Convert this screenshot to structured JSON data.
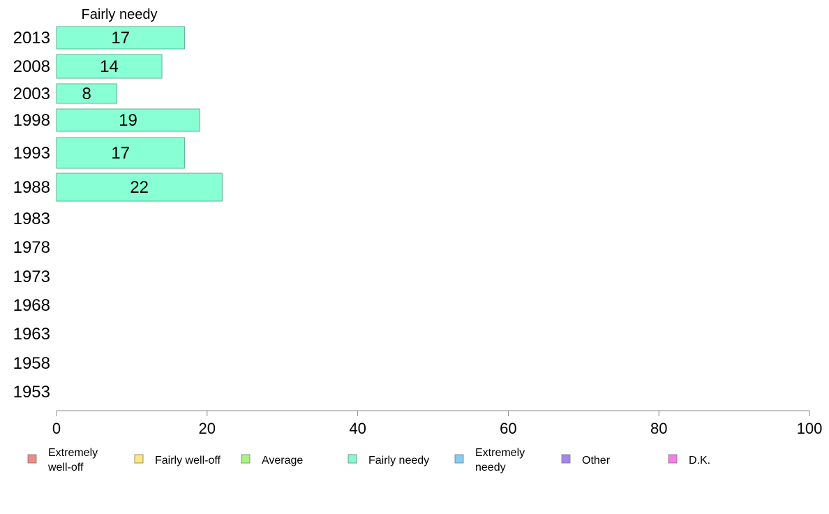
{
  "chart_data": {
    "type": "bar",
    "orientation": "horizontal",
    "title": "Fairly needy",
    "categories": [
      "2013",
      "2008",
      "2003",
      "1998",
      "1993",
      "1988",
      "1983",
      "1978",
      "1973",
      "1968",
      "1963",
      "1958",
      "1953"
    ],
    "series": [
      {
        "name": "Fairly needy",
        "values": [
          17,
          14,
          8,
          19,
          17,
          22,
          null,
          null,
          null,
          null,
          null,
          null,
          null
        ]
      }
    ],
    "xlim": [
      0,
      100
    ],
    "xticks": [
      0,
      20,
      40,
      60,
      80,
      100
    ],
    "grid": false,
    "legend_position": "bottom"
  },
  "legend": [
    {
      "label": [
        "Extremely",
        "well-off"
      ],
      "color": "#f28b82"
    },
    {
      "label": [
        "Fairly well-off"
      ],
      "color": "#fce97a"
    },
    {
      "label": [
        "Average"
      ],
      "color": "#a6f67d"
    },
    {
      "label": [
        "Fairly needy"
      ],
      "color": "#80fdcf"
    },
    {
      "label": [
        "Extremely",
        "needy"
      ],
      "color": "#87cbf7"
    },
    {
      "label": [
        "Other"
      ],
      "color": "#a585f2"
    },
    {
      "label": [
        "D.K."
      ],
      "color": "#f77ce9"
    }
  ],
  "colors": {
    "bar_fill": "#88ffd4",
    "bar_stroke": "#5ab592",
    "axis": "#888888"
  }
}
